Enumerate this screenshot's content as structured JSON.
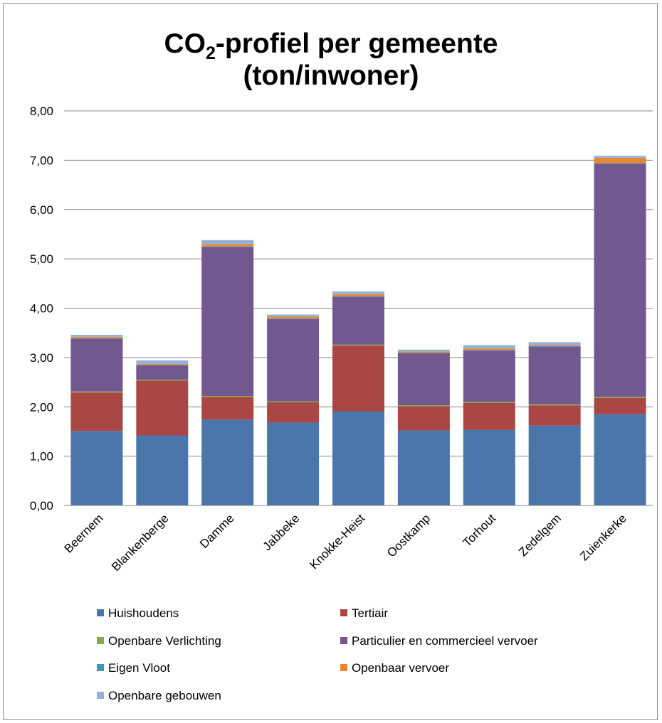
{
  "chart_data": {
    "type": "bar",
    "stacked": true,
    "title": {
      "prefix": "CO",
      "subscript": "2",
      "suffix": "-profiel per gemeente",
      "line2": "(ton/inwoner)"
    },
    "xlabel": "",
    "ylabel": "",
    "ylim": [
      0,
      8
    ],
    "yticks": [
      "0,00",
      "1,00",
      "2,00",
      "3,00",
      "4,00",
      "5,00",
      "6,00",
      "7,00",
      "8,00"
    ],
    "grid": true,
    "legend_position": "bottom",
    "categories": [
      "Beernem",
      "Blankenberge",
      "Damme",
      "Jabbeke",
      "Knokke-Heist",
      "Oostkamp",
      "Torhout",
      "Zedelgem",
      "Zuienkerke"
    ],
    "series": [
      {
        "name": "Huishoudens",
        "color": "#4a76ab",
        "values": [
          1.51,
          1.42,
          1.74,
          1.68,
          1.91,
          1.52,
          1.53,
          1.62,
          1.85
        ]
      },
      {
        "name": "Tertiair",
        "color": "#aa4644",
        "values": [
          0.78,
          1.11,
          0.46,
          0.41,
          1.33,
          0.49,
          0.55,
          0.41,
          0.33
        ]
      },
      {
        "name": "Openbare Verlichting",
        "color": "#8aa84d",
        "values": [
          0.02,
          0.02,
          0.02,
          0.02,
          0.02,
          0.02,
          0.02,
          0.02,
          0.02
        ]
      },
      {
        "name": "Particulier en commercieel vervoer",
        "color": "#71588f",
        "values": [
          1.07,
          0.29,
          3.02,
          1.67,
          0.97,
          1.06,
          1.04,
          1.17,
          4.73
        ]
      },
      {
        "name": "Eigen Vloot",
        "color": "#3c9ab5",
        "values": [
          0.01,
          0.01,
          0.01,
          0.01,
          0.01,
          0.01,
          0.01,
          0.01,
          0.01
        ]
      },
      {
        "name": "Openbaar vervoer",
        "color": "#e98633",
        "values": [
          0.03,
          0.02,
          0.05,
          0.04,
          0.04,
          0.02,
          0.03,
          0.02,
          0.11
        ]
      },
      {
        "name": "Openbare gebouwen",
        "color": "#95b0d8",
        "values": [
          0.04,
          0.07,
          0.08,
          0.04,
          0.06,
          0.04,
          0.07,
          0.06,
          0.04
        ]
      }
    ]
  }
}
